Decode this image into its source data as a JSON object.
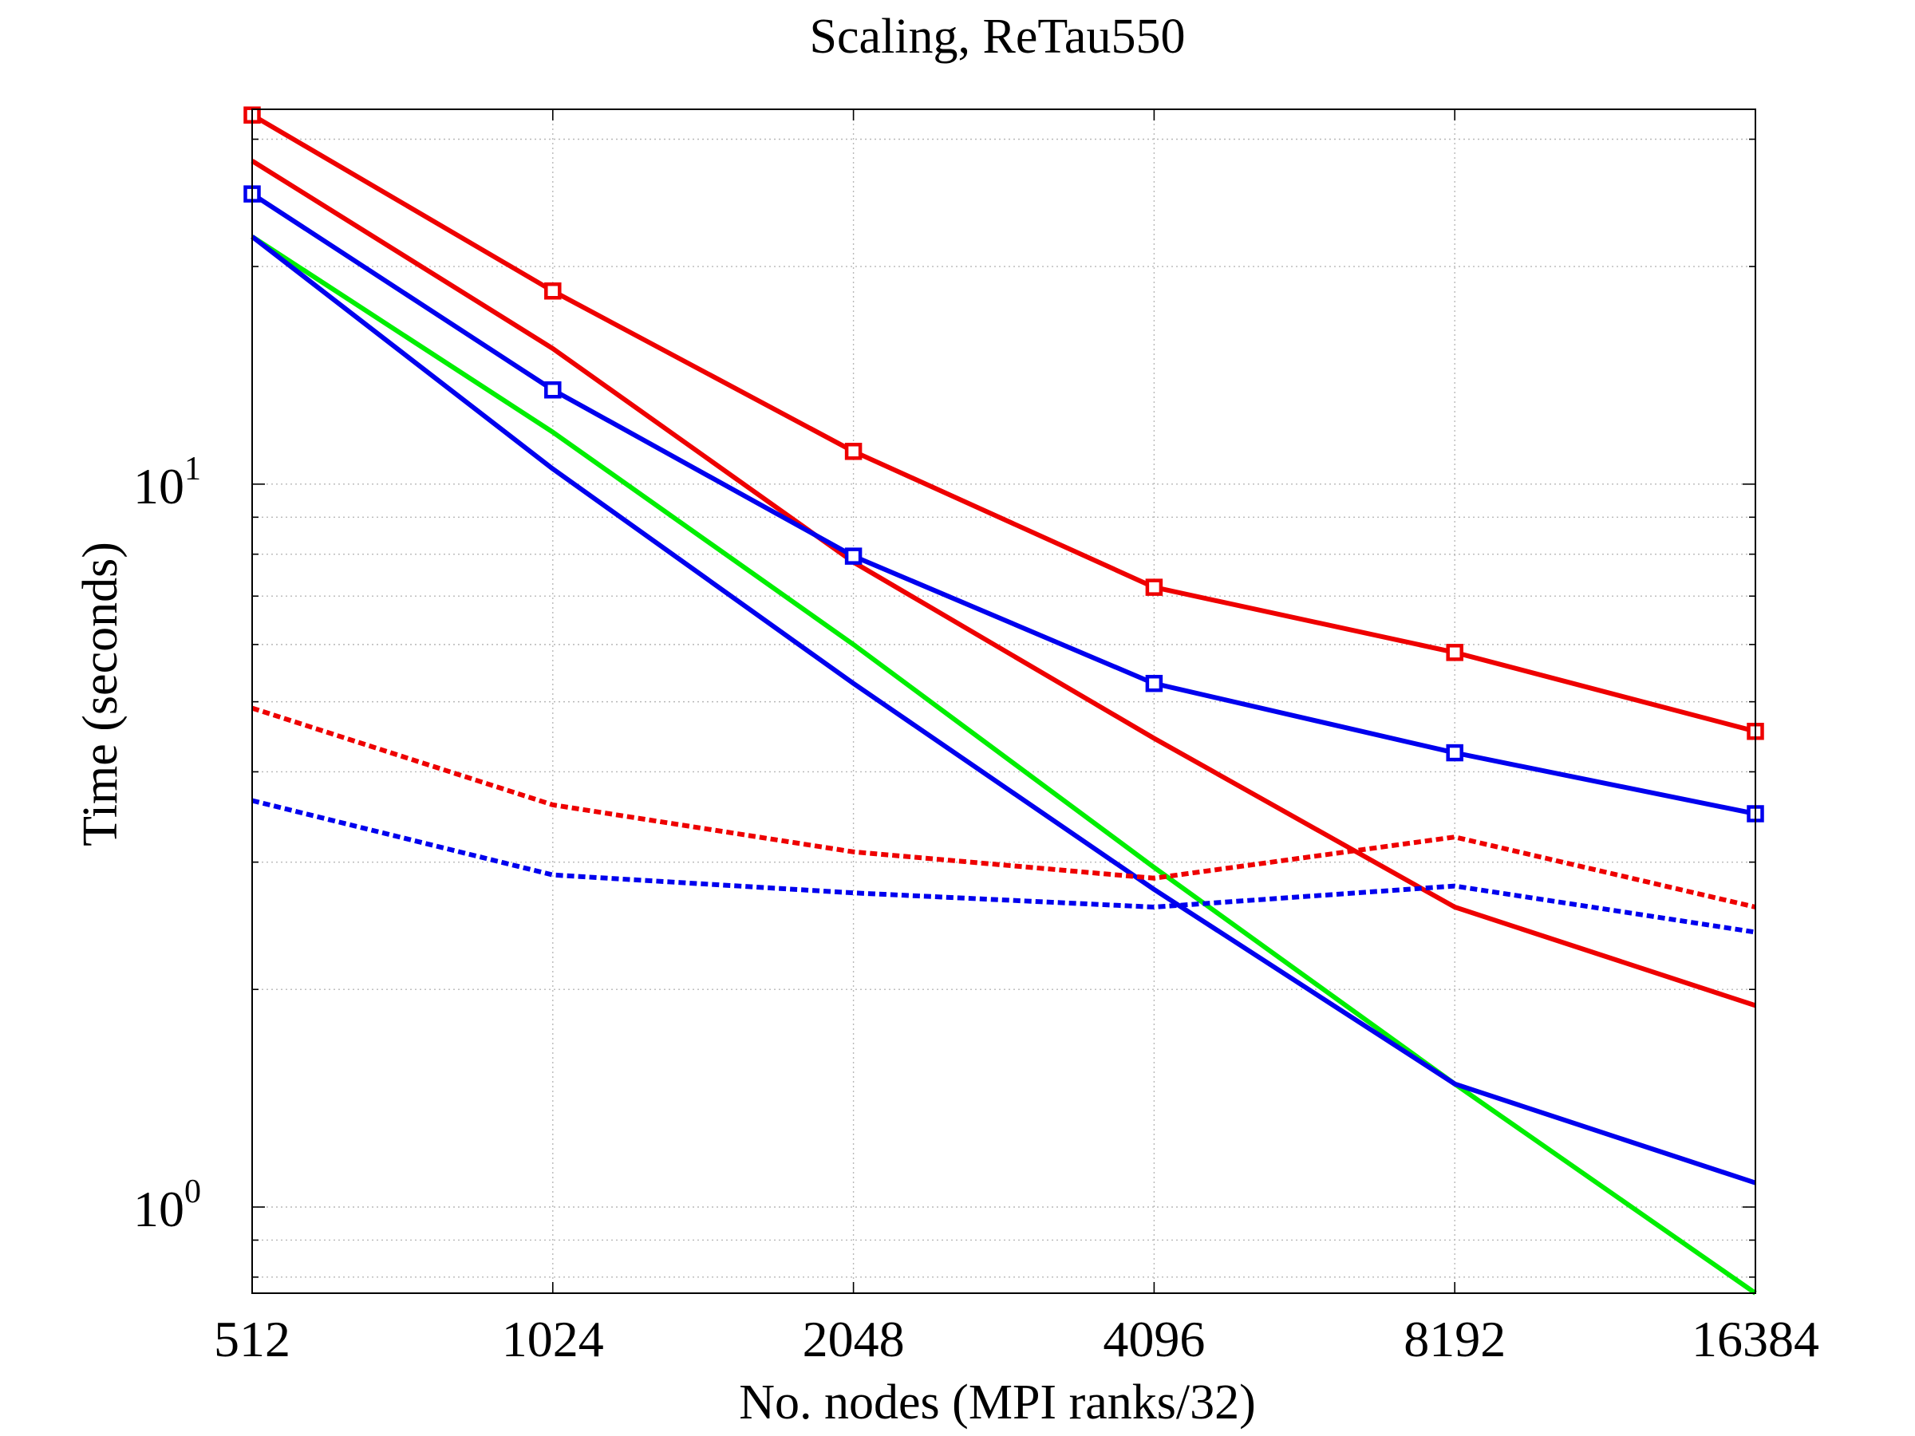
{
  "chart_data": {
    "type": "line",
    "title": "Scaling, ReTau550",
    "xlabel": "No. nodes (MPI ranks/32)",
    "ylabel": "Time (seconds)",
    "x_scale": "log2",
    "y_scale": "log10",
    "x": [
      512,
      1024,
      2048,
      4096,
      8192,
      16384
    ],
    "x_tick_labels": [
      "512",
      "1024",
      "2048",
      "4096",
      "8192",
      "16384"
    ],
    "y_major_ticks": [
      {
        "base": "10",
        "exp": "0",
        "value": 1
      },
      {
        "base": "10",
        "exp": "1",
        "value": 10
      }
    ],
    "xlim": [
      512,
      16384
    ],
    "ylim": [
      0.76,
      33
    ],
    "grid": true,
    "legend": "none",
    "series": [
      {
        "color": "#ee0000",
        "style": "solid",
        "marker": "square",
        "values": [
          32.4,
          18.5,
          11.1,
          7.2,
          5.85,
          4.55
        ]
      },
      {
        "color": "#0000ee",
        "style": "solid",
        "marker": "square",
        "values": [
          25.2,
          13.5,
          7.95,
          5.3,
          4.25,
          3.5
        ]
      },
      {
        "color": "#ee0000",
        "style": "solid",
        "marker": "none",
        "values": [
          28.0,
          15.4,
          7.8,
          4.45,
          2.6,
          1.9
        ]
      },
      {
        "color": "#0000ee",
        "style": "solid",
        "marker": "none",
        "values": [
          22.0,
          10.5,
          5.3,
          2.75,
          1.48,
          1.08
        ]
      },
      {
        "color": "#00ee00",
        "style": "solid",
        "marker": "none",
        "values": [
          22.0,
          11.8,
          6.0,
          2.95,
          1.48,
          0.76
        ]
      },
      {
        "color": "#ee0000",
        "style": "dashed",
        "marker": "none",
        "values": [
          4.9,
          3.6,
          3.1,
          2.85,
          3.25,
          2.6
        ]
      },
      {
        "color": "#0000ee",
        "style": "dashed",
        "marker": "none",
        "values": [
          3.65,
          2.88,
          2.72,
          2.6,
          2.78,
          2.4
        ]
      }
    ]
  }
}
